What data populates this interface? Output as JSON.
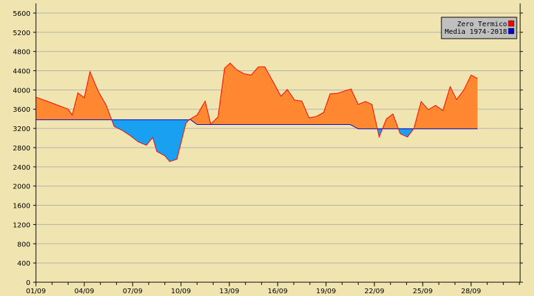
{
  "chart_data": {
    "type": "area",
    "title": "",
    "xlabel": "",
    "ylabel": "",
    "ylim": [
      0,
      5800
    ],
    "y_ticks": [
      0,
      400,
      800,
      1200,
      1600,
      2000,
      2400,
      2800,
      3200,
      3600,
      4000,
      4400,
      4800,
      5200,
      5600
    ],
    "y_tick_labels": [
      "0",
      "400",
      "800",
      "1200",
      "1600",
      "2000",
      "2400",
      "2800",
      "3200",
      "3600",
      "4000",
      "4400",
      "4800",
      "5200",
      "5600"
    ],
    "x_tick_labels": [
      "01/09",
      "04/09",
      "07/09",
      "10/09",
      "13/09",
      "16/09",
      "19/09",
      "22/09",
      "25/09",
      "28/09"
    ],
    "x_tick_days": [
      1,
      4,
      7,
      10,
      13,
      16,
      19,
      22,
      25,
      28
    ],
    "xlim": [
      1,
      31
    ],
    "grid": true,
    "legend_position": "top-right",
    "series": [
      {
        "name": "Zero Termico",
        "color": "#ff0000",
        "fill_above": "#ff8830",
        "points": [
          [
            1.0,
            3850
          ],
          [
            1.75,
            3760
          ],
          [
            2.3,
            3690
          ],
          [
            2.85,
            3620
          ],
          [
            3.0,
            3600
          ],
          [
            3.25,
            3480
          ],
          [
            3.6,
            3940
          ],
          [
            4.0,
            3840
          ],
          [
            4.35,
            4380
          ],
          [
            4.9,
            3950
          ],
          [
            5.35,
            3690
          ],
          [
            5.85,
            3240
          ],
          [
            6.35,
            3160
          ],
          [
            6.85,
            3050
          ],
          [
            7.35,
            2920
          ],
          [
            7.85,
            2850
          ],
          [
            8.25,
            3010
          ],
          [
            8.5,
            2720
          ],
          [
            9.0,
            2630
          ],
          [
            9.3,
            2510
          ],
          [
            9.75,
            2560
          ],
          [
            10.05,
            2960
          ],
          [
            10.3,
            3300
          ],
          [
            10.5,
            3380
          ],
          [
            11.0,
            3480
          ],
          [
            11.5,
            3770
          ],
          [
            11.85,
            3290
          ],
          [
            12.3,
            3440
          ],
          [
            12.7,
            4450
          ],
          [
            13.05,
            4560
          ],
          [
            13.45,
            4420
          ],
          [
            13.9,
            4340
          ],
          [
            14.35,
            4310
          ],
          [
            14.8,
            4480
          ],
          [
            15.2,
            4480
          ],
          [
            15.75,
            4150
          ],
          [
            16.2,
            3870
          ],
          [
            16.6,
            4010
          ],
          [
            17.05,
            3790
          ],
          [
            17.5,
            3770
          ],
          [
            17.95,
            3420
          ],
          [
            18.4,
            3450
          ],
          [
            18.85,
            3530
          ],
          [
            19.25,
            3920
          ],
          [
            19.7,
            3930
          ],
          [
            20.15,
            3980
          ],
          [
            20.55,
            4020
          ],
          [
            21.0,
            3700
          ],
          [
            21.45,
            3760
          ],
          [
            21.85,
            3700
          ],
          [
            22.3,
            3020
          ],
          [
            22.75,
            3400
          ],
          [
            23.15,
            3500
          ],
          [
            23.6,
            3090
          ],
          [
            24.05,
            3020
          ],
          [
            24.45,
            3200
          ],
          [
            24.9,
            3760
          ],
          [
            25.35,
            3590
          ],
          [
            25.8,
            3680
          ],
          [
            26.25,
            3570
          ],
          [
            26.7,
            4070
          ],
          [
            27.1,
            3800
          ],
          [
            27.55,
            4000
          ],
          [
            28.0,
            4310
          ],
          [
            28.4,
            4240
          ]
        ]
      },
      {
        "name": "Media 1974-2018",
        "color": "#0000cc",
        "fill_below": "#1aa0f0",
        "points": [
          [
            1.0,
            3380
          ],
          [
            6.0,
            3380
          ],
          [
            10.6,
            3380
          ],
          [
            11.0,
            3280
          ],
          [
            20.5,
            3280
          ],
          [
            21.0,
            3190
          ],
          [
            28.0,
            3190
          ],
          [
            28.4,
            3190
          ]
        ]
      }
    ]
  }
}
